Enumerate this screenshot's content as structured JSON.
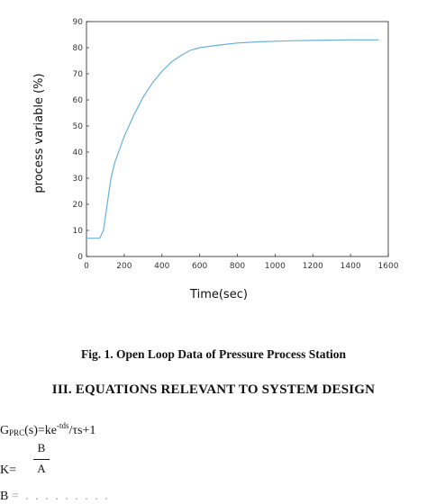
{
  "chart_data": {
    "type": "line",
    "xlabel": "Time(sec)",
    "ylabel": "process variable (%)",
    "xlim": [
      0,
      1600
    ],
    "ylim": [
      0,
      90
    ],
    "xticks": [
      0,
      200,
      400,
      600,
      800,
      1000,
      1200,
      1400,
      1600
    ],
    "yticks": [
      0,
      10,
      20,
      30,
      40,
      50,
      60,
      70,
      80,
      90
    ],
    "grid": false,
    "line_color": "#6ab0d8",
    "series": [
      {
        "x": [
          0,
          70,
          90,
          110,
          130,
          150,
          200,
          250,
          300,
          350,
          400,
          450,
          500,
          550,
          600,
          700,
          800,
          900,
          1000,
          1100,
          1200,
          1300,
          1400,
          1500,
          1550
        ],
        "y": [
          7,
          7,
          10,
          20,
          30,
          36,
          46,
          54,
          61,
          66.5,
          71,
          74.5,
          77,
          79,
          80,
          81,
          81.8,
          82.2,
          82.5,
          82.7,
          82.8,
          82.9,
          83,
          83,
          83
        ]
      }
    ]
  },
  "caption": "Fig. 1. Open Loop Data of Pressure Process Station",
  "section_heading": "III.  EQUATIONS RELEVANT TO SYSTEM DESIGN",
  "equation1": {
    "lhs_main": "G",
    "lhs_sub": "PRC",
    "lhs_rest": "(s)=ke",
    "exp": "-tds",
    "rhs": "/τs+1"
  },
  "equation2": {
    "lhs": "K=",
    "numerator": "B",
    "denominator": "A"
  },
  "equation3": {
    "start": "B",
    "cutoff": "= . . . .  . . .  . ."
  }
}
